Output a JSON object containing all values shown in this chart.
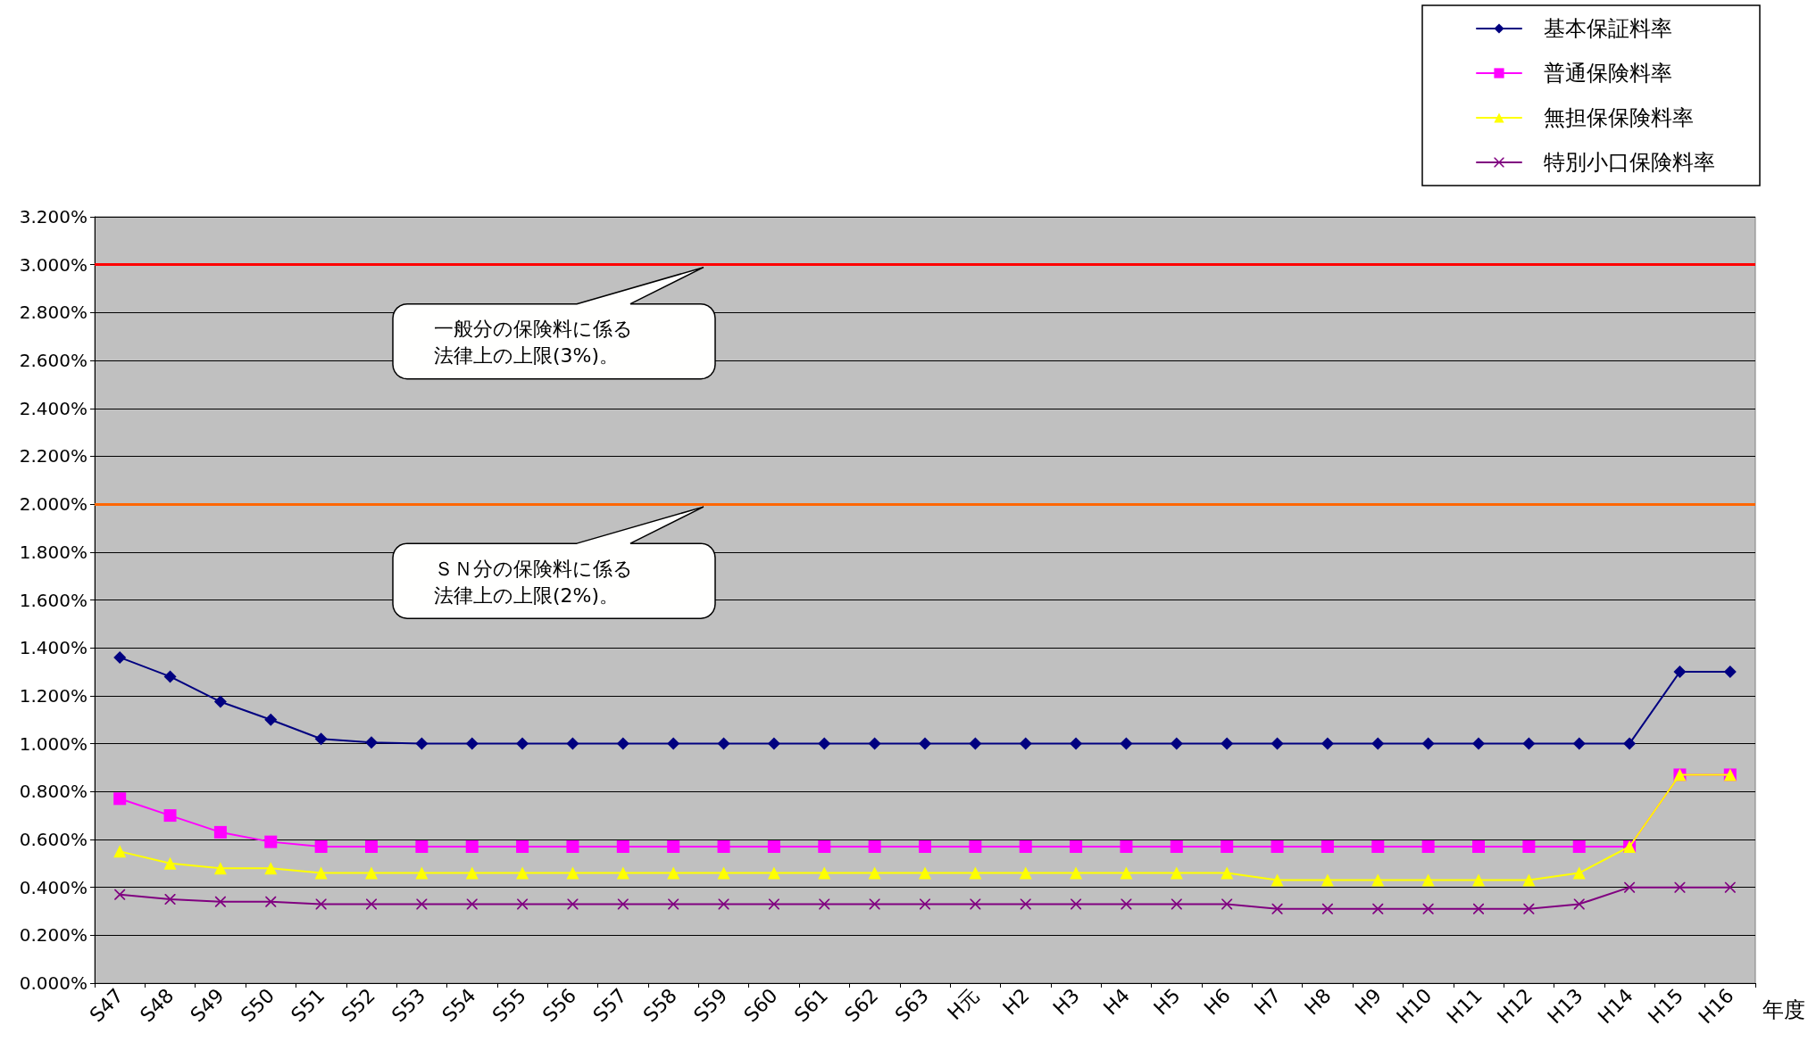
{
  "chart_data": {
    "type": "line",
    "xlabel": "年度",
    "categories": [
      "S47",
      "S48",
      "S49",
      "S50",
      "S51",
      "S52",
      "S53",
      "S54",
      "S55",
      "S56",
      "S57",
      "S58",
      "S59",
      "S60",
      "S61",
      "S62",
      "S63",
      "H元",
      "H2",
      "H3",
      "H4",
      "H5",
      "H6",
      "H7",
      "H8",
      "H9",
      "H10",
      "H11",
      "H12",
      "H13",
      "H14",
      "H15",
      "H16"
    ],
    "series": [
      {
        "name": "基本保証料率",
        "color": "#000080",
        "marker": "diamond",
        "values": [
          1.36,
          1.28,
          1.175,
          1.1,
          1.02,
          1.005,
          1.0,
          1.0,
          1.0,
          1.0,
          1.0,
          1.0,
          1.0,
          1.0,
          1.0,
          1.0,
          1.0,
          1.0,
          1.0,
          1.0,
          1.0,
          1.0,
          1.0,
          1.0,
          1.0,
          1.0,
          1.0,
          1.0,
          1.0,
          1.0,
          1.0,
          1.3,
          1.3
        ]
      },
      {
        "name": "普通保険料率",
        "color": "#ff00ff",
        "marker": "square",
        "values": [
          0.77,
          0.7,
          0.63,
          0.59,
          0.57,
          0.57,
          0.57,
          0.57,
          0.57,
          0.57,
          0.57,
          0.57,
          0.57,
          0.57,
          0.57,
          0.57,
          0.57,
          0.57,
          0.57,
          0.57,
          0.57,
          0.57,
          0.57,
          0.57,
          0.57,
          0.57,
          0.57,
          0.57,
          0.57,
          0.57,
          0.57,
          0.87,
          0.87
        ]
      },
      {
        "name": "無担保保険料率",
        "color": "#ffff00",
        "marker": "triangle",
        "values": [
          0.55,
          0.5,
          0.48,
          0.48,
          0.46,
          0.46,
          0.46,
          0.46,
          0.46,
          0.46,
          0.46,
          0.46,
          0.46,
          0.46,
          0.46,
          0.46,
          0.46,
          0.46,
          0.46,
          0.46,
          0.46,
          0.46,
          0.46,
          0.43,
          0.43,
          0.43,
          0.43,
          0.43,
          0.43,
          0.46,
          0.57,
          0.87,
          0.87
        ]
      },
      {
        "name": "特別小口保険料率",
        "color": "#800080",
        "marker": "cross",
        "values": [
          0.37,
          0.35,
          0.34,
          0.34,
          0.33,
          0.33,
          0.33,
          0.33,
          0.33,
          0.33,
          0.33,
          0.33,
          0.33,
          0.33,
          0.33,
          0.33,
          0.33,
          0.33,
          0.33,
          0.33,
          0.33,
          0.33,
          0.33,
          0.31,
          0.31,
          0.31,
          0.31,
          0.31,
          0.31,
          0.33,
          0.4,
          0.4,
          0.4
        ]
      }
    ],
    "ylim": [
      0,
      3.2
    ],
    "yticks": [
      {
        "value": 0,
        "label": "0.000%"
      },
      {
        "value": 0.2,
        "label": "0.200%"
      },
      {
        "value": 0.4,
        "label": "0.400%"
      },
      {
        "value": 0.6,
        "label": "0.600%"
      },
      {
        "value": 0.8,
        "label": "0.800%"
      },
      {
        "value": 1.0,
        "label": "1.000%"
      },
      {
        "value": 1.2,
        "label": "1.200%"
      },
      {
        "value": 1.4,
        "label": "1.400%"
      },
      {
        "value": 1.6,
        "label": "1.600%"
      },
      {
        "value": 1.8,
        "label": "1.800%"
      },
      {
        "value": 2.0,
        "label": "2.000%"
      },
      {
        "value": 2.2,
        "label": "2.200%"
      },
      {
        "value": 2.4,
        "label": "2.400%"
      },
      {
        "value": 2.6,
        "label": "2.600%"
      },
      {
        "value": 2.8,
        "label": "2.800%"
      },
      {
        "value": 3.0,
        "label": "3.000%"
      },
      {
        "value": 3.2,
        "label": "3.200%"
      }
    ],
    "ref_lines": [
      {
        "axis": "y",
        "value": 3.0,
        "label": "一般分の保険料に係る法律上の上限(3%)。",
        "color": "#ff0000"
      },
      {
        "axis": "y",
        "value": 2.0,
        "label": "ＳＮ分の保険料に係る法律上の上限(2%)。",
        "color": "#ff6600"
      }
    ],
    "grid": "y",
    "legend": "top right",
    "line_style": "solid"
  }
}
